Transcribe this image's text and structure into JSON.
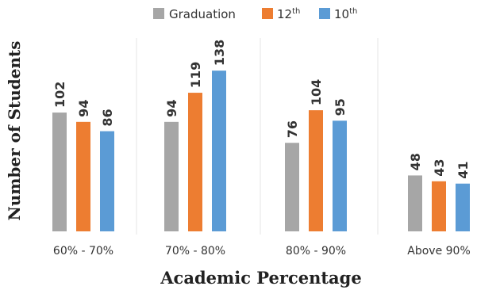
{
  "chart_data": {
    "type": "bar",
    "title": "",
    "xlabel": "Academic Percentage",
    "ylabel": "Number of Students",
    "categories": [
      "60% - 70%",
      "70% - 80%",
      "80% - 90%",
      "Above 90%"
    ],
    "series": [
      {
        "name": "Graduation",
        "values": [
          102,
          94,
          76,
          48
        ],
        "color": "#a6a6a6"
      },
      {
        "name": "12th",
        "values": [
          94,
          119,
          104,
          43
        ],
        "color": "#ed7d31"
      },
      {
        "name": "10th",
        "values": [
          86,
          138,
          95,
          41
        ],
        "color": "#5b9bd5"
      }
    ],
    "legend_position": "top-center",
    "grid": false,
    "ylim": [
      0,
      155
    ]
  },
  "legend": {
    "items": [
      {
        "label": "Graduation",
        "sup": ""
      },
      {
        "label": "12",
        "sup": "th"
      },
      {
        "label": "10",
        "sup": "th"
      }
    ]
  }
}
